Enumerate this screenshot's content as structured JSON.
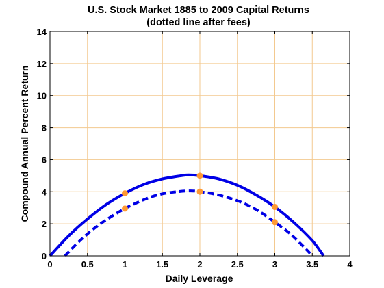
{
  "chart_data": {
    "type": "line",
    "title": "U.S. Stock Market 1885 to 2009 Capital Returns",
    "subtitle": "(dotted line after fees)",
    "xlabel": "Daily Leverage",
    "ylabel": "Compound Annual Percent Return",
    "xlim": [
      0,
      4
    ],
    "ylim": [
      0,
      14
    ],
    "x_ticks": [
      0,
      0.5,
      1,
      1.5,
      2,
      2.5,
      3,
      3.5,
      4
    ],
    "x_tick_labels": [
      "0",
      "0.5",
      "1",
      "1.5",
      "2",
      "2.5",
      "3",
      "3.5",
      "4"
    ],
    "y_ticks": [
      0,
      2,
      4,
      6,
      8,
      10,
      12,
      14
    ],
    "y_tick_labels": [
      "0",
      "2",
      "4",
      "6",
      "8",
      "10",
      "12",
      "14"
    ],
    "grid": true,
    "colors": {
      "line": "#0000e6",
      "marker": "#ff9933",
      "grid": "#f3c98f",
      "axis": "#000000"
    },
    "series": [
      {
        "style": "solid",
        "x": [
          0,
          0.25,
          0.5,
          0.75,
          1,
          1.25,
          1.5,
          1.75,
          1.85,
          2,
          2.25,
          2.5,
          2.75,
          3,
          3.25,
          3.5,
          3.65
        ],
        "y": [
          0,
          1.25,
          2.3,
          3.2,
          3.9,
          4.45,
          4.8,
          5.0,
          5.05,
          5.0,
          4.8,
          4.4,
          3.8,
          3.05,
          2.1,
          0.95,
          0
        ]
      },
      {
        "style": "dashed",
        "x": [
          0.2,
          0.4,
          0.6,
          0.8,
          1,
          1.2,
          1.4,
          1.6,
          1.85,
          2,
          2.2,
          2.4,
          2.6,
          2.8,
          3,
          3.2,
          3.4,
          3.5
        ],
        "y": [
          0,
          0.95,
          1.75,
          2.4,
          2.95,
          3.4,
          3.75,
          3.95,
          4.05,
          4.0,
          3.85,
          3.6,
          3.25,
          2.75,
          2.1,
          1.4,
          0.5,
          0
        ]
      }
    ],
    "markers": [
      {
        "x": 1,
        "y": 3.9
      },
      {
        "x": 2,
        "y": 5.0
      },
      {
        "x": 3,
        "y": 3.05
      },
      {
        "x": 1,
        "y": 2.95
      },
      {
        "x": 2,
        "y": 4.0
      },
      {
        "x": 3,
        "y": 2.1
      }
    ]
  }
}
